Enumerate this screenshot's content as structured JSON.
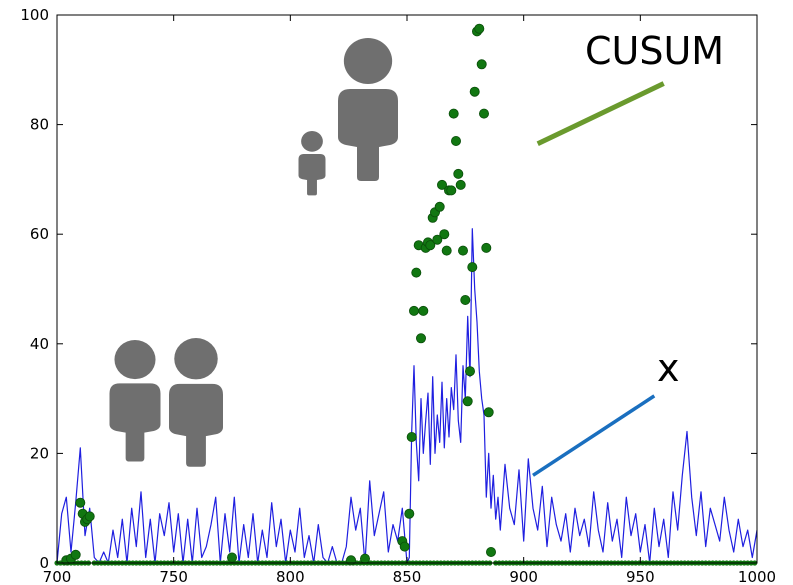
{
  "chart_data": {
    "type": "scatter",
    "title": "",
    "xlabel": "",
    "ylabel": "",
    "xlim": [
      700,
      1000
    ],
    "ylim": [
      0,
      100
    ],
    "xticks": [
      700,
      750,
      800,
      850,
      900,
      950,
      1000
    ],
    "yticks": [
      0,
      20,
      40,
      60,
      80,
      100
    ],
    "grid": false,
    "colors": {
      "x_series": "#1f1fe0",
      "cusum_series": "#117711",
      "cusum_pointer": "#6a9a2e",
      "x_pointer": "#1a6fbf",
      "people_icons": "#6f6f6f"
    },
    "annotations": [
      {
        "text": "CUSUM",
        "points_to": "cusum",
        "pointer_start": [
          906,
          76.5
        ],
        "pointer_end": [
          960,
          87.5
        ]
      },
      {
        "text": "x",
        "points_to": "x",
        "pointer_start": [
          904,
          16
        ],
        "pointer_end": [
          956,
          30.5
        ]
      }
    ],
    "icons": [
      {
        "name": "adult-child-icon",
        "meaning": "adult with child",
        "near": [
          815,
          75
        ]
      },
      {
        "name": "two-adults-icon",
        "meaning": "two adults",
        "near": [
          735,
          30
        ]
      }
    ],
    "series": [
      {
        "name": "x",
        "style": "line",
        "x": [
          700,
          702,
          704,
          706,
          708,
          710,
          712,
          714,
          716,
          718,
          720,
          722,
          724,
          726,
          728,
          730,
          732,
          734,
          736,
          738,
          740,
          742,
          744,
          746,
          748,
          750,
          752,
          754,
          756,
          758,
          760,
          762,
          764,
          766,
          768,
          770,
          772,
          774,
          776,
          778,
          780,
          782,
          784,
          786,
          788,
          790,
          792,
          794,
          796,
          798,
          800,
          802,
          804,
          806,
          808,
          810,
          812,
          814,
          816,
          818,
          820,
          822,
          824,
          826,
          828,
          830,
          832,
          834,
          836,
          838,
          840,
          842,
          844,
          846,
          848,
          850,
          851,
          852,
          853,
          854,
          855,
          856,
          857,
          858,
          859,
          860,
          861,
          862,
          863,
          864,
          865,
          866,
          867,
          868,
          869,
          870,
          871,
          872,
          873,
          874,
          875,
          876,
          877,
          878,
          879,
          880,
          881,
          882,
          883,
          884,
          885,
          886,
          887,
          888,
          889,
          890,
          892,
          894,
          896,
          898,
          900,
          902,
          904,
          906,
          908,
          910,
          912,
          914,
          916,
          918,
          920,
          922,
          924,
          926,
          928,
          930,
          932,
          934,
          936,
          938,
          940,
          942,
          944,
          946,
          948,
          950,
          952,
          954,
          956,
          958,
          960,
          962,
          964,
          966,
          968,
          970,
          972,
          974,
          976,
          978,
          980,
          982,
          984,
          986,
          988,
          990,
          992,
          994,
          996,
          998,
          1000
        ],
        "y": [
          0,
          9,
          12,
          2,
          11,
          21,
          5,
          10,
          1,
          0,
          2,
          0,
          6,
          1,
          8,
          0,
          10,
          3,
          13,
          1,
          8,
          0,
          9,
          5,
          11,
          2,
          9,
          0,
          8,
          0,
          10,
          1,
          3,
          7,
          12,
          0,
          9,
          2,
          12,
          0,
          7,
          1,
          9,
          0,
          6,
          1,
          11,
          3,
          8,
          0,
          6,
          2,
          10,
          1,
          5,
          0,
          7,
          1,
          0,
          3,
          0,
          0,
          3,
          12,
          6,
          10,
          0,
          15,
          5,
          9,
          13,
          2,
          7,
          4,
          10,
          0,
          1,
          24,
          36,
          22,
          15,
          30,
          20,
          26,
          31,
          18,
          34,
          20,
          27,
          22,
          33,
          21,
          30,
          23,
          32,
          28,
          38,
          26,
          22,
          36,
          30,
          45,
          34,
          61,
          50,
          44,
          35,
          30,
          27,
          12,
          20,
          10,
          16,
          8,
          12,
          6,
          18,
          10,
          7,
          17,
          4,
          19,
          10,
          6,
          14,
          3,
          12,
          7,
          4,
          9,
          2,
          10,
          5,
          8,
          3,
          13,
          6,
          2,
          11,
          4,
          8,
          1,
          12,
          5,
          9,
          2,
          7,
          0,
          10,
          3,
          8,
          1,
          13,
          6,
          16,
          24,
          12,
          5,
          13,
          3,
          10,
          7,
          4,
          12,
          6,
          2,
          8,
          3,
          6,
          1,
          6
        ]
      },
      {
        "name": "CUSUM",
        "style": "markers",
        "x": [
          704,
          706,
          708,
          710,
          711,
          712,
          713,
          714,
          775,
          826,
          832,
          848,
          849,
          851,
          852,
          853,
          854,
          855,
          856,
          857,
          858,
          859,
          860,
          861,
          862,
          863,
          864,
          865,
          866,
          867,
          868,
          869,
          870,
          871,
          872,
          873,
          874,
          875,
          876,
          877,
          878,
          879,
          880,
          881,
          882,
          883,
          884,
          885,
          886
        ],
        "y": [
          0.5,
          0.8,
          1.5,
          11,
          9,
          7.5,
          8,
          8.5,
          1,
          0.5,
          0.8,
          4,
          3,
          9,
          23,
          46,
          53,
          58,
          41,
          46,
          57.5,
          58.5,
          58,
          63,
          64,
          59,
          65,
          69,
          60,
          57,
          68,
          68,
          82,
          77,
          71,
          69,
          57,
          48,
          29.5,
          35,
          54,
          86,
          97,
          97.5,
          91,
          82,
          57.5,
          27.5,
          2
        ]
      }
    ]
  }
}
